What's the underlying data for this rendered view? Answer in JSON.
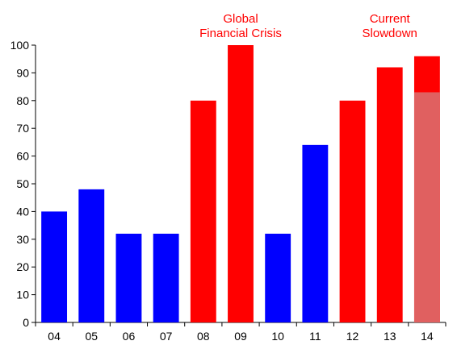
{
  "chart_data": {
    "type": "bar",
    "title": "",
    "xlabel": "",
    "ylabel": "",
    "ylim": [
      0,
      100
    ],
    "yticks": [
      0,
      10,
      20,
      30,
      40,
      50,
      60,
      70,
      80,
      90,
      100
    ],
    "grid": false,
    "legend": "none",
    "categories": [
      "04",
      "05",
      "06",
      "07",
      "08",
      "09",
      "10",
      "11",
      "12",
      "13",
      "14"
    ],
    "values": [
      40,
      48,
      32,
      32,
      80,
      100,
      32,
      64,
      80,
      92,
      96
    ],
    "bar_colors": [
      "#0000ff",
      "#0000ff",
      "#0000ff",
      "#0000ff",
      "#ff0000",
      "#ff0000",
      "#0000ff",
      "#0000ff",
      "#ff0000",
      "#ff0000",
      "#ff0000"
    ],
    "overlay": {
      "category": "14",
      "value": 83,
      "color": "#e06060"
    },
    "annotations": [
      {
        "lines": [
          "Global",
          "Financial Crisis"
        ],
        "category": "09",
        "color": "#ff0000"
      },
      {
        "lines": [
          "Current",
          "Slowdown"
        ],
        "category": "13",
        "color": "#ff0000"
      }
    ]
  }
}
